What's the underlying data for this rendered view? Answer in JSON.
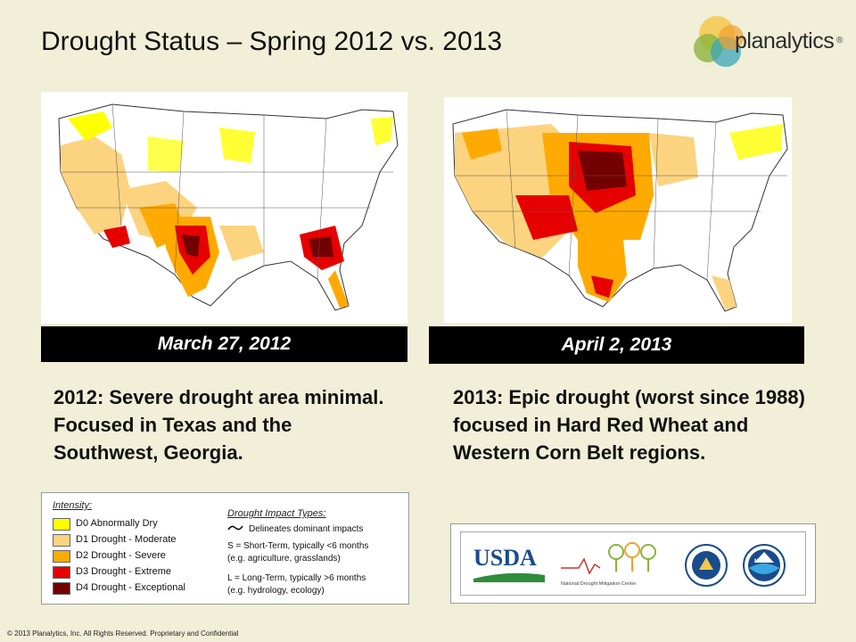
{
  "title": "Drought Status – Spring 2012 vs. 2013",
  "logo": {
    "text": "planalytics",
    "reg": "®"
  },
  "maps": {
    "left": {
      "date": "March 27, 2012"
    },
    "right": {
      "date": "April 2, 2013"
    }
  },
  "descriptions": {
    "left": "2012: Severe drought area minimal.  Focused in Texas and the Southwest, Georgia.",
    "right": "2013:  Epic drought (worst since 1988) focused in Hard Red Wheat and Western Corn Belt regions."
  },
  "legend": {
    "title": "Intensity:",
    "items": [
      {
        "label": "D0 Abnormally Dry",
        "color": "#ffff00"
      },
      {
        "label": "D1 Drought - Moderate",
        "color": "#fcd37f"
      },
      {
        "label": "D2 Drought - Severe",
        "color": "#ffaa00"
      },
      {
        "label": "D3 Drought - Extreme",
        "color": "#e60000"
      },
      {
        "label": "D4 Drought - Exceptional",
        "color": "#730000"
      }
    ],
    "impact_title": "Drought Impact Types:",
    "impact_lines": [
      "Delineates dominant impacts",
      "S = Short-Term, typically <6 months",
      "(e.g. agriculture, grasslands)",
      "L = Long-Term, typically >6 months",
      "(e.g. hydrology, ecology)"
    ]
  },
  "agencies": {
    "usda": "USDA",
    "ndmc": "National Drought Mitigation Center",
    "noaa": "NOAA"
  },
  "footer": "© 2013 Planalytics, Inc. All Rights Reserved. Proprietary and Confidential"
}
